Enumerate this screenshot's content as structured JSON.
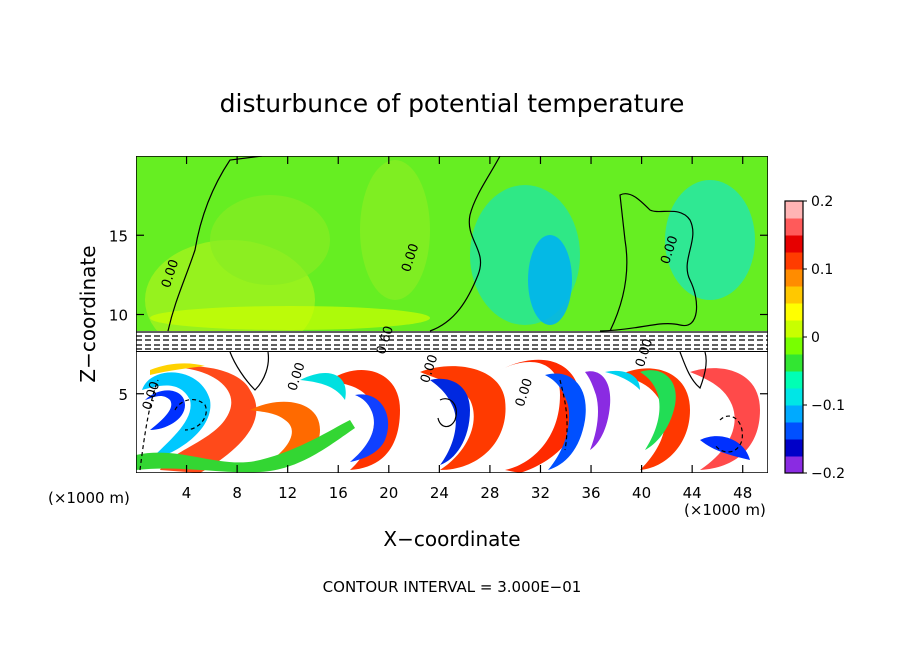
{
  "chart_data": {
    "type": "heatmap",
    "title": "disturbunce of potential temperature",
    "xlabel": "X−coordinate",
    "ylabel": "Z−coordinate",
    "x_unit": "(×1000 m)",
    "z_unit": "(×1000 m)",
    "footer": "CONTOUR INTERVAL = 3.000E−01",
    "xlim": [
      0,
      50
    ],
    "zlim": [
      0,
      20
    ],
    "x_ticks": [
      4,
      8,
      12,
      16,
      20,
      24,
      28,
      32,
      36,
      40,
      44,
      48
    ],
    "x_tick_labels": [
      "4",
      "8",
      "12",
      "16",
      "20",
      "24",
      "28",
      "32",
      "36",
      "40",
      "44",
      "48"
    ],
    "z_ticks": [
      5,
      10,
      15
    ],
    "z_tick_labels": [
      "5",
      "10",
      "15"
    ],
    "colorbar": {
      "min": -0.2,
      "max": 0.2,
      "ticks": [
        0.2,
        0.1,
        0,
        -0.1,
        -0.2
      ],
      "tick_labels": [
        "0.2",
        "0.1",
        "0",
        "−0.1",
        "−0.2"
      ],
      "colors": [
        "#8a2be2",
        "#0000c8",
        "#0050ff",
        "#00aaff",
        "#00e6e6",
        "#00ffb4",
        "#32e632",
        "#78ff00",
        "#c8ff00",
        "#ffff00",
        "#ffc800",
        "#ff8c00",
        "#ff3c00",
        "#e60000",
        "#ff5a5a",
        "#ffb4b4"
      ]
    },
    "contour_labels": [
      {
        "text": "0.00",
        "x": 3.0,
        "z": 12.5
      },
      {
        "text": "0.00",
        "x": 22.0,
        "z": 13.5
      },
      {
        "text": "0.00",
        "x": 42.5,
        "z": 14.0
      },
      {
        "text": "0.60",
        "x": 20.0,
        "z": 8.3
      },
      {
        "text": "0.00",
        "x": 23.5,
        "z": 6.5
      },
      {
        "text": "0.00",
        "x": 31.0,
        "z": 5.0
      },
      {
        "text": "0.00",
        "x": 1.5,
        "z": 4.8
      },
      {
        "text": "0.00",
        "x": 13.0,
        "z": 6.0
      },
      {
        "text": "0.00",
        "x": 40.5,
        "z": 7.5
      }
    ]
  }
}
